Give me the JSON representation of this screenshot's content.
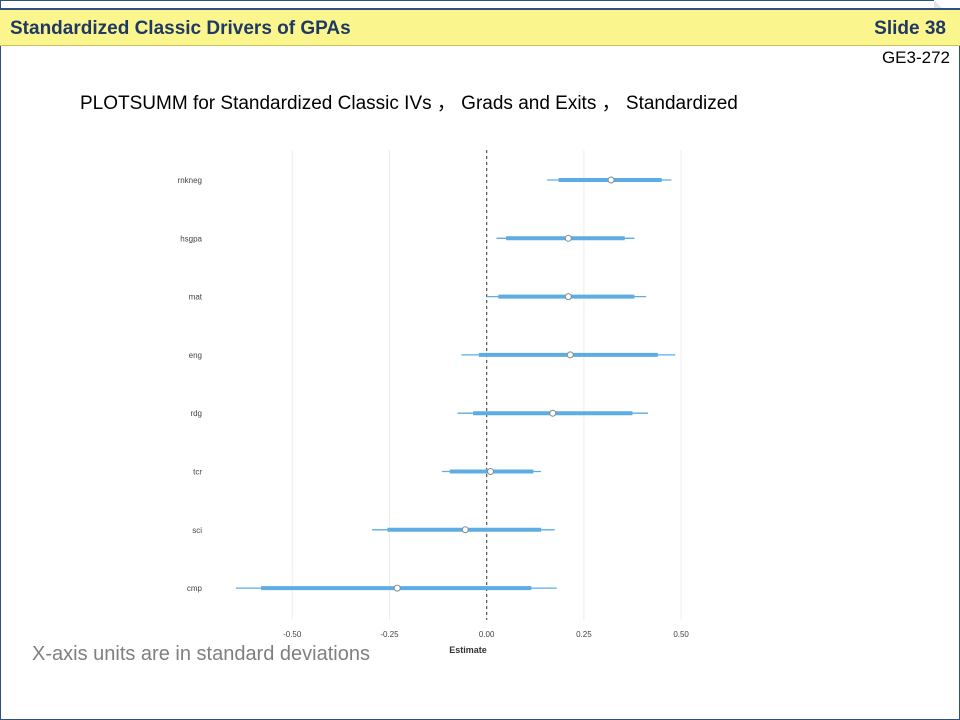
{
  "header": {
    "title": "Standardized Classic Drivers of GPAs",
    "slide_number": "Slide 38",
    "code": "GE3-272"
  },
  "subtitle": "PLOTSUMM for Standardized Classic IVs ， Grads and Exits ， Standardized",
  "footnote": "X-axis units are in standard deviations",
  "chart_data": {
    "type": "interval",
    "xlabel": "Estimate",
    "ylabel": "",
    "xlim": [
      -0.75,
      0.6
    ],
    "x_ticks": [
      -0.5,
      -0.25,
      0.0,
      0.25,
      0.5
    ],
    "x_tick_labels": [
      "-0.50",
      "-0.25",
      "0.00",
      "0.25",
      "0.50"
    ],
    "reference_line": 0.0,
    "grid": true,
    "colors": {
      "interval": "#5dade2",
      "point_fill": "#ffffff",
      "point_stroke": "#7f8c8d",
      "grid": "#ececec"
    },
    "categories": [
      "rnkneg",
      "hsgpa",
      "mat",
      "eng",
      "rdg",
      "tcr",
      "sci",
      "cmp"
    ],
    "estimate": [
      0.32,
      0.21,
      0.21,
      0.215,
      0.17,
      0.01,
      -0.055,
      -0.23
    ],
    "inner_low": [
      0.185,
      0.05,
      0.03,
      -0.02,
      -0.035,
      -0.095,
      -0.255,
      -0.58
    ],
    "inner_high": [
      0.45,
      0.355,
      0.38,
      0.44,
      0.375,
      0.12,
      0.14,
      0.115
    ],
    "outer_low": [
      0.155,
      0.025,
      0.0,
      -0.065,
      -0.075,
      -0.115,
      -0.295,
      -0.645
    ],
    "outer_high": [
      0.475,
      0.38,
      0.41,
      0.485,
      0.415,
      0.14,
      0.175,
      0.18
    ]
  }
}
